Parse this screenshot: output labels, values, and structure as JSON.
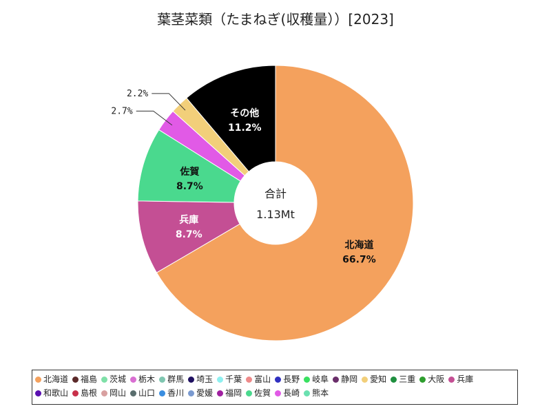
{
  "chart_data": {
    "type": "pie",
    "title": "葉茎菜類（たまねぎ(収穫量））[2023]",
    "center_label": "合計",
    "center_value": "1.13Mt",
    "slices": [
      {
        "name": "北海道",
        "value": 66.7,
        "label": "66.7%",
        "color": "#f4a15d",
        "text_color": "#111111",
        "label_inside": true
      },
      {
        "name": "兵庫",
        "value": 8.7,
        "label": "8.7%",
        "color": "#c44f94",
        "text_color": "#ffffff",
        "label_inside": true
      },
      {
        "name": "佐賀",
        "value": 8.7,
        "label": "8.7%",
        "color": "#4ad98e",
        "text_color": "#111111",
        "label_inside": true
      },
      {
        "name": "長崎",
        "value": 2.7,
        "label": "2.7%",
        "color": "#e15ae6",
        "text_color": "#111111",
        "label_inside": false
      },
      {
        "name": "愛知",
        "value": 2.2,
        "label": "2.2%",
        "color": "#f2cf7a",
        "text_color": "#111111",
        "label_inside": false
      },
      {
        "name": "その他",
        "value": 11.2,
        "label": "11.2%",
        "color": "#000000",
        "text_color": "#ffffff",
        "label_inside": true
      }
    ],
    "legend": [
      {
        "name": "北海道",
        "color": "#f4a15d"
      },
      {
        "name": "福島",
        "color": "#5b2a2a"
      },
      {
        "name": "茨城",
        "color": "#7fe0a8"
      },
      {
        "name": "栃木",
        "color": "#d96fd2"
      },
      {
        "name": "群馬",
        "color": "#7fc6b0"
      },
      {
        "name": "埼玉",
        "color": "#1f1060"
      },
      {
        "name": "千葉",
        "color": "#8ff0f0"
      },
      {
        "name": "富山",
        "color": "#ee8a8a"
      },
      {
        "name": "長野",
        "color": "#3030c0"
      },
      {
        "name": "岐阜",
        "color": "#39e060"
      },
      {
        "name": "静岡",
        "color": "#6a2e6a"
      },
      {
        "name": "愛知",
        "color": "#f2cf7a"
      },
      {
        "name": "三重",
        "color": "#1f8f3f"
      },
      {
        "name": "大阪",
        "color": "#2e9e2e"
      },
      {
        "name": "兵庫",
        "color": "#c44f94"
      },
      {
        "name": "和歌山",
        "color": "#5a10b0"
      },
      {
        "name": "島根",
        "color": "#c8304a"
      },
      {
        "name": "岡山",
        "color": "#d8a0a0"
      },
      {
        "name": "山口",
        "color": "#5a6e6e"
      },
      {
        "name": "香川",
        "color": "#3a8ee0"
      },
      {
        "name": "愛媛",
        "color": "#7a9ad0"
      },
      {
        "name": "福岡",
        "color": "#a020a0"
      },
      {
        "name": "佐賀",
        "color": "#4ad98e"
      },
      {
        "name": "長崎",
        "color": "#e15ae6"
      },
      {
        "name": "熊本",
        "color": "#6ae0b0"
      }
    ]
  }
}
